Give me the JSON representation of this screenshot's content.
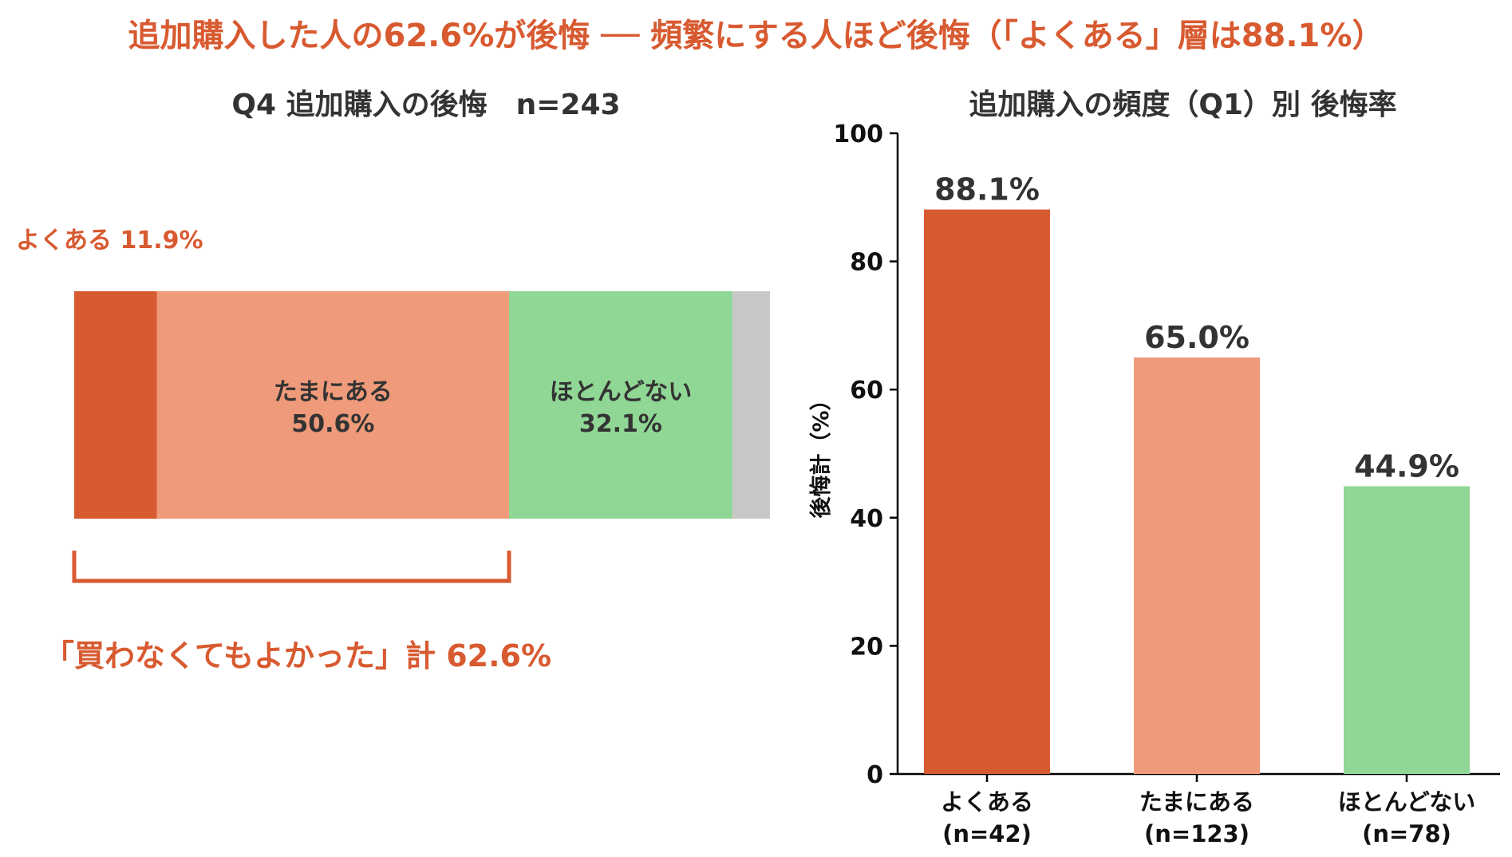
{
  "headline": "追加購入した人の62.6%が後悔 ── 頻繁にする人ほど後悔（「よくある」層は88.1%）",
  "colors": {
    "accent": "#d85a30",
    "often": "#d85a30",
    "sometimes": "#ef9a7a",
    "rarely": "#90d694",
    "other": "#c8c8c8",
    "text": "#333333"
  },
  "left_panel": {
    "title": "Q4 追加購入の後悔　n=243",
    "callout": "よくある 11.9%",
    "bracket_label": "「買わなくてもよかった」計 62.6%"
  },
  "chart_data": [
    {
      "type": "bar",
      "orientation": "horizontal-stacked",
      "title": "Q4 追加購入の後悔　n=243",
      "segments": [
        {
          "name": "よくある",
          "value": 11.9,
          "label_outside": "よくある 11.9%"
        },
        {
          "name": "たまにある",
          "value": 50.6,
          "label_line1": "たまにある",
          "label_line2": "50.6%"
        },
        {
          "name": "ほとんどない",
          "value": 32.1,
          "label_line1": "ほとんどない",
          "label_line2": "32.1%"
        },
        {
          "name": "",
          "value": 5.4
        }
      ],
      "bracket": {
        "covers": [
          "よくある",
          "たまにある"
        ],
        "value": 62.6,
        "label": "「買わなくてもよかった」計 62.6%"
      }
    },
    {
      "type": "bar",
      "title": "追加購入の頻度（Q1）別 後悔率",
      "ylabel": "後悔計（%）",
      "ylim": [
        0,
        100
      ],
      "yticks": [
        "0",
        "20",
        "40",
        "60",
        "80",
        "100"
      ],
      "grid": false,
      "categories": [
        {
          "line1": "よくある",
          "line2": "(n=42)"
        },
        {
          "line1": "たまにある",
          "line2": "(n=123)"
        },
        {
          "line1": "ほとんどない",
          "line2": "(n=78)"
        }
      ],
      "values": [
        88.1,
        65.0,
        44.9
      ],
      "value_labels": [
        "88.1%",
        "65.0%",
        "44.9%"
      ]
    }
  ]
}
